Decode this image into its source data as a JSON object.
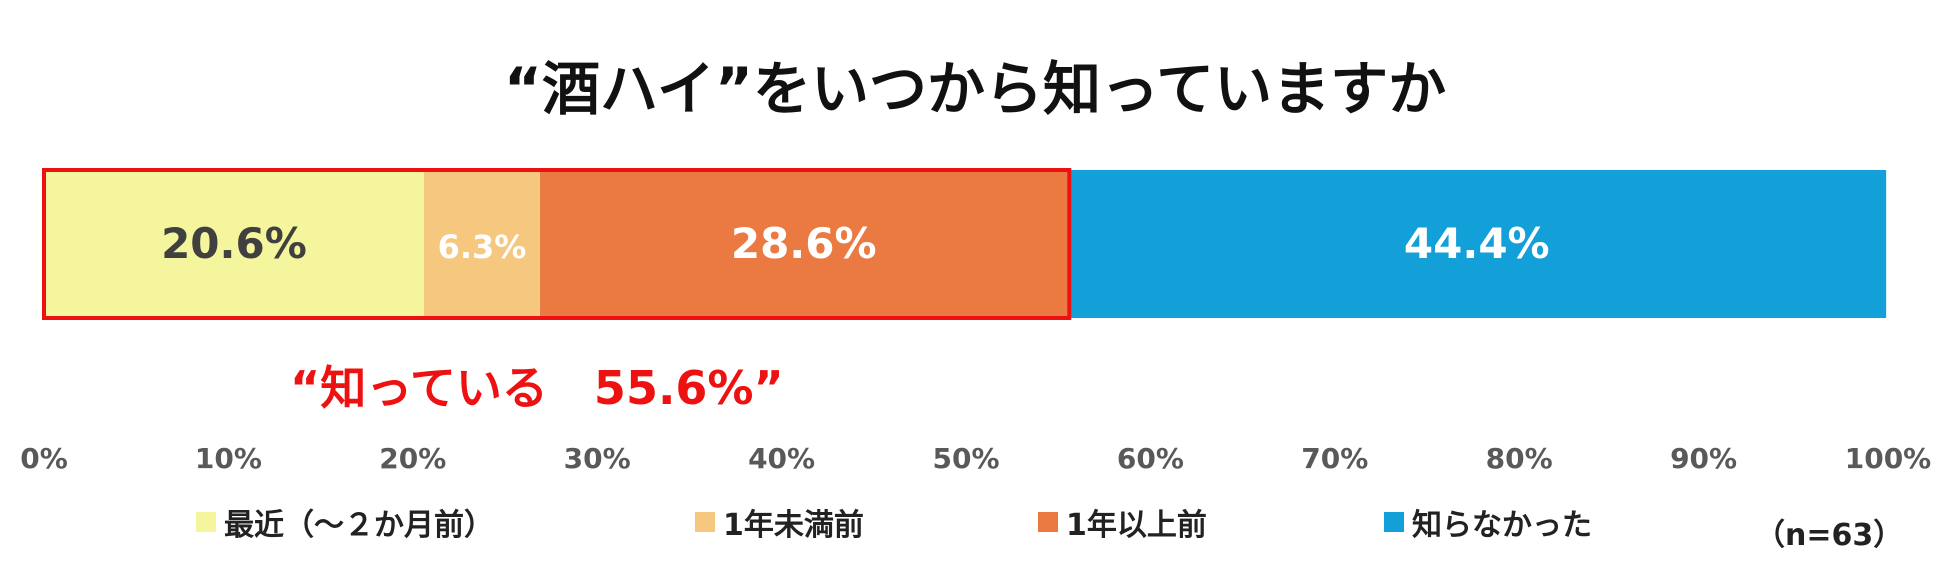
{
  "chart_data": {
    "type": "bar",
    "orientation": "horizontal-stacked-100",
    "title": "“酒ハイ”をいつから知っていますか",
    "series": [
      {
        "name": "最近（～２か月前）",
        "value": 20.6,
        "label": "20.6%",
        "color": "#f4f59c",
        "label_color": "#404040"
      },
      {
        "name": "1年未満前",
        "value": 6.3,
        "label": "6.3%",
        "color": "#f6c77f",
        "label_color": "#ffffff"
      },
      {
        "name": "1年以上前",
        "value": 28.6,
        "label": "28.6%",
        "color": "#ea7a41",
        "label_color": "#ffffff"
      },
      {
        "name": "知らなかった",
        "value": 44.4,
        "label": "44.4%",
        "color": "#139fd8",
        "label_color": "#ffffff"
      }
    ],
    "xlim": [
      0,
      100
    ],
    "xticks": [
      "0%",
      "10%",
      "20%",
      "30%",
      "40%",
      "50%",
      "60%",
      "70%",
      "80%",
      "90%",
      "100%"
    ],
    "highlight": {
      "value": 55.6,
      "text": "“知っている　55.6%”",
      "color": "#ee1111"
    },
    "legend_position": "bottom",
    "note": "（n=63）"
  }
}
